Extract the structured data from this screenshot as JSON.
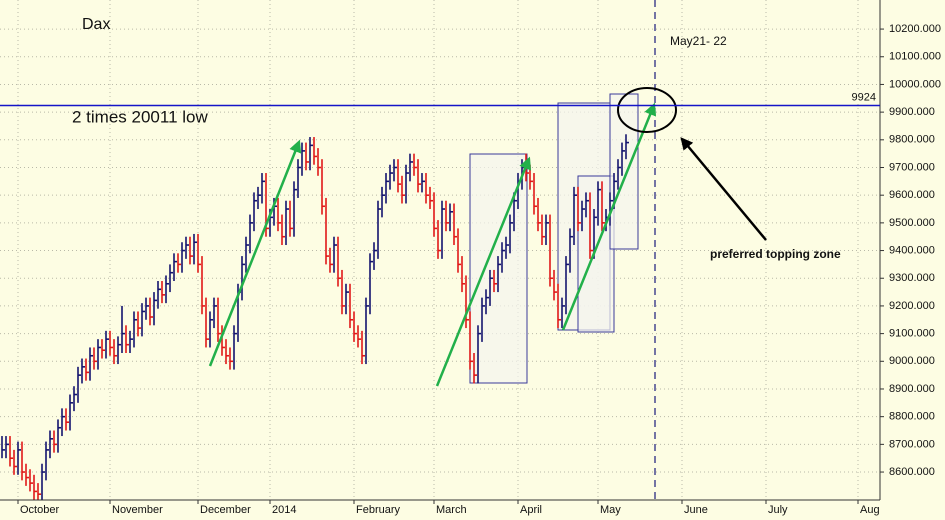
{
  "chart_data": {
    "type": "ohlc",
    "title": "Dax",
    "annotations": [
      "2 times 20011 low",
      "May21- 22",
      "preferred topping zone"
    ],
    "categories": [
      null,
      null,
      null,
      null,
      "October",
      null,
      null,
      null,
      null,
      null,
      null,
      null,
      null,
      null,
      null,
      null,
      null,
      null,
      null,
      null,
      null,
      null,
      null,
      null,
      null,
      null,
      null,
      "November",
      null,
      null,
      null,
      null,
      null,
      null,
      null,
      null,
      null,
      null,
      null,
      null,
      null,
      null,
      null,
      null,
      null,
      null,
      null,
      null,
      null,
      "December",
      null,
      null,
      null,
      null,
      null,
      null,
      null,
      null,
      null,
      null,
      null,
      null,
      null,
      null,
      null,
      null,
      null,
      "2014",
      null,
      null,
      null,
      null,
      null,
      null,
      null,
      null,
      null,
      null,
      null,
      null,
      null,
      null,
      null,
      null,
      null,
      null,
      null,
      null,
      "February",
      null,
      null,
      null,
      null,
      null,
      null,
      null,
      null,
      null,
      null,
      null,
      null,
      null,
      null,
      null,
      null,
      null,
      null,
      null,
      "March",
      null,
      null,
      null,
      null,
      null,
      null,
      null,
      null,
      null,
      null,
      null,
      null,
      null,
      null,
      null,
      null,
      null,
      null,
      null,
      null,
      "April",
      null,
      null,
      null,
      null,
      null,
      null,
      null,
      null,
      null,
      null,
      null,
      null,
      null,
      null,
      null,
      null,
      null,
      null,
      null,
      "May",
      null,
      null,
      null,
      null,
      null,
      null,
      null,
      null,
      null,
      null,
      null,
      null,
      null,
      null,
      null,
      null,
      null,
      null,
      null,
      null,
      "June",
      null,
      null,
      null,
      null,
      null,
      null,
      null,
      null,
      null,
      null,
      null,
      null,
      null,
      null,
      null,
      null,
      null,
      null,
      null,
      null,
      "July",
      null,
      null,
      null,
      null,
      null,
      null,
      null,
      null,
      null,
      null,
      null,
      null,
      null,
      null,
      null,
      null,
      null,
      null,
      null,
      null,
      null,
      null,
      "Aug"
    ],
    "high": [
      8730,
      8730,
      8730,
      8680,
      8710,
      8710,
      8630,
      8610,
      8590,
      8560,
      8630,
      8710,
      8750,
      8750,
      8790,
      8830,
      8830,
      8880,
      8910,
      8980,
      9010,
      9010,
      9050,
      9050,
      9080,
      9080,
      9110,
      9110,
      9080,
      9090,
      9200,
      9130,
      9110,
      9180,
      9180,
      9210,
      9230,
      9230,
      9250,
      9290,
      9290,
      9310,
      9350,
      9390,
      9390,
      9430,
      9450,
      9450,
      9460,
      9460,
      9380,
      9230,
      9180,
      9230,
      9230,
      9130,
      9080,
      9050,
      9130,
      9280,
      9380,
      9450,
      9530,
      9610,
      9630,
      9680,
      9680,
      9550,
      9590,
      9590,
      9530,
      9580,
      9580,
      9650,
      9730,
      9790,
      9790,
      9810,
      9810,
      9770,
      9730,
      9590,
      9410,
      9450,
      9450,
      9330,
      9280,
      9280,
      9180,
      9130,
      9110,
      9230,
      9390,
      9430,
      9580,
      9630,
      9680,
      9710,
      9730,
      9730,
      9670,
      9710,
      9750,
      9750,
      9730,
      9680,
      9680,
      9630,
      9610,
      9510,
      9580,
      9580,
      9570,
      9570,
      9480,
      9380,
      9310,
      9180,
      9030,
      9130,
      9230,
      9260,
      9330,
      9330,
      9380,
      9430,
      9450,
      9530,
      9610,
      9680,
      9730,
      9750,
      9710,
      9680,
      9590,
      9530,
      9530,
      9530,
      9330,
      9280,
      9230,
      9380,
      9480,
      9630,
      9630,
      9580,
      9610,
      9610,
      9550,
      9650,
      9650,
      9550,
      9610,
      9680,
      9730,
      9790,
      9820,
      null,
      null,
      null,
      null,
      null,
      null,
      null,
      null,
      null,
      null,
      null,
      null,
      null,
      null,
      null,
      null,
      null,
      null,
      null,
      null,
      null,
      null,
      null,
      null,
      null,
      null,
      null,
      null,
      null,
      null,
      null,
      null,
      null,
      null,
      null,
      null,
      null,
      null,
      null,
      null,
      null,
      null,
      null,
      null,
      null,
      null,
      null,
      null,
      null,
      null,
      null,
      null,
      null,
      null,
      null,
      null,
      null,
      null
    ],
    "low": [
      8650,
      8650,
      8620,
      8590,
      8590,
      8570,
      8550,
      8530,
      8500,
      8500,
      8500,
      8570,
      8650,
      8670,
      8670,
      8730,
      8750,
      8750,
      8820,
      8850,
      8920,
      8930,
      8930,
      8970,
      8970,
      9010,
      9010,
      9020,
      8990,
      8990,
      9030,
      9030,
      9030,
      9050,
      9090,
      9090,
      9150,
      9130,
      9130,
      9190,
      9210,
      9210,
      9250,
      9290,
      9320,
      9320,
      9370,
      9350,
      9350,
      9320,
      9170,
      9050,
      9050,
      9120,
      9070,
      9020,
      8990,
      8970,
      8970,
      9070,
      9220,
      9320,
      9390,
      9470,
      9550,
      9570,
      9450,
      9450,
      9490,
      9470,
      9420,
      9420,
      9450,
      9450,
      9590,
      9670,
      9690,
      9690,
      9710,
      9670,
      9530,
      9350,
      9320,
      9320,
      9270,
      9170,
      9170,
      9120,
      9070,
      9050,
      8990,
      8990,
      9170,
      9330,
      9370,
      9520,
      9570,
      9620,
      9650,
      9610,
      9570,
      9570,
      9650,
      9670,
      9610,
      9610,
      9570,
      9550,
      9450,
      9370,
      9370,
      9470,
      9470,
      9420,
      9320,
      9250,
      9120,
      8970,
      8920,
      8920,
      9070,
      9170,
      9200,
      9250,
      9250,
      9320,
      9370,
      9390,
      9470,
      9550,
      9620,
      9650,
      9620,
      9530,
      9470,
      9420,
      9420,
      9270,
      9220,
      9120,
      9120,
      9170,
      9320,
      9420,
      9470,
      9470,
      9520,
      9370,
      9370,
      9490,
      9470,
      9470,
      9490,
      9550,
      9620,
      9670,
      9730,
      null,
      null,
      null,
      null,
      null,
      null,
      null,
      null,
      null,
      null,
      null,
      null,
      null,
      null,
      null,
      null,
      null,
      null,
      null,
      null,
      null,
      null,
      null,
      null,
      null,
      null,
      null,
      null,
      null,
      null,
      null,
      null,
      null,
      null,
      null,
      null,
      null,
      null,
      null,
      null,
      null,
      null,
      null,
      null,
      null,
      null,
      null,
      null,
      null,
      null,
      null,
      null,
      null,
      null,
      null,
      null,
      null,
      null
    ],
    "close": [
      8680,
      8700,
      8650,
      8620,
      8680,
      8600,
      8580,
      8560,
      8530,
      8520,
      8600,
      8680,
      8720,
      8700,
      8760,
      8800,
      8780,
      8850,
      8880,
      8950,
      8980,
      8960,
      9020,
      9000,
      9050,
      9040,
      9080,
      9050,
      9020,
      9060,
      9100,
      9060,
      9080,
      9150,
      9120,
      9180,
      9200,
      9160,
      9220,
      9260,
      9240,
      9280,
      9320,
      9360,
      9350,
      9400,
      9420,
      9380,
      9430,
      9350,
      9200,
      9080,
      9150,
      9200,
      9100,
      9050,
      9020,
      9000,
      9100,
      9250,
      9350,
      9420,
      9500,
      9580,
      9600,
      9650,
      9480,
      9520,
      9560,
      9500,
      9450,
      9550,
      9480,
      9620,
      9700,
      9760,
      9720,
      9780,
      9740,
      9700,
      9560,
      9380,
      9350,
      9420,
      9300,
      9200,
      9250,
      9150,
      9100,
      9080,
      9020,
      9200,
      9360,
      9400,
      9550,
      9600,
      9650,
      9680,
      9700,
      9640,
      9600,
      9680,
      9720,
      9700,
      9640,
      9650,
      9600,
      9580,
      9480,
      9400,
      9550,
      9500,
      9540,
      9450,
      9350,
      9280,
      9150,
      9000,
      8950,
      9100,
      9200,
      9230,
      9300,
      9280,
      9350,
      9400,
      9420,
      9500,
      9580,
      9650,
      9700,
      9680,
      9650,
      9560,
      9500,
      9450,
      9500,
      9300,
      9250,
      9150,
      9200,
      9350,
      9450,
      9600,
      9500,
      9550,
      9580,
      9400,
      9520,
      9620,
      9500,
      9520,
      9580,
      9650,
      9700,
      9760,
      9790,
      null,
      null,
      null,
      null,
      null,
      null,
      null,
      null,
      null,
      null,
      null,
      null,
      null,
      null,
      null,
      null,
      null,
      null,
      null,
      null,
      null,
      null,
      null,
      null,
      null,
      null,
      null,
      null,
      null,
      null,
      null,
      null,
      null,
      null,
      null,
      null,
      null,
      null,
      null,
      null,
      null,
      null,
      null,
      null,
      null,
      null,
      null,
      null,
      null,
      null,
      null,
      null,
      null,
      null,
      null,
      null,
      null,
      null
    ],
    "up_color": "#14146e",
    "down_color": "#e01818",
    "hline": {
      "value": 9924,
      "color": "#1515c8"
    },
    "ylim": [
      8499,
      10305
    ],
    "yticks": [
      {
        "value": 8600,
        "label": "8600.000"
      },
      {
        "value": 8700,
        "label": "8700.000"
      },
      {
        "value": 8800,
        "label": "8800.000"
      },
      {
        "value": 8900,
        "label": "8900.000"
      },
      {
        "value": 9000,
        "label": "9000.000"
      },
      {
        "value": 9100,
        "label": "9100.000"
      },
      {
        "value": 9200,
        "label": "9200.000"
      },
      {
        "value": 9300,
        "label": "9300.000"
      },
      {
        "value": 9400,
        "label": "9400.000"
      },
      {
        "value": 9500,
        "label": "9500.000"
      },
      {
        "value": 9600,
        "label": "9600.000"
      },
      {
        "value": 9700,
        "label": "9700.000"
      },
      {
        "value": 9800,
        "label": "9800.000"
      },
      {
        "value": 9900,
        "label": "9900.000"
      },
      {
        "value": 10000,
        "label": "10000.000"
      },
      {
        "value": 10100,
        "label": "10100.000"
      },
      {
        "value": 10200,
        "label": "10200.000"
      }
    ],
    "grid": true
  }
}
